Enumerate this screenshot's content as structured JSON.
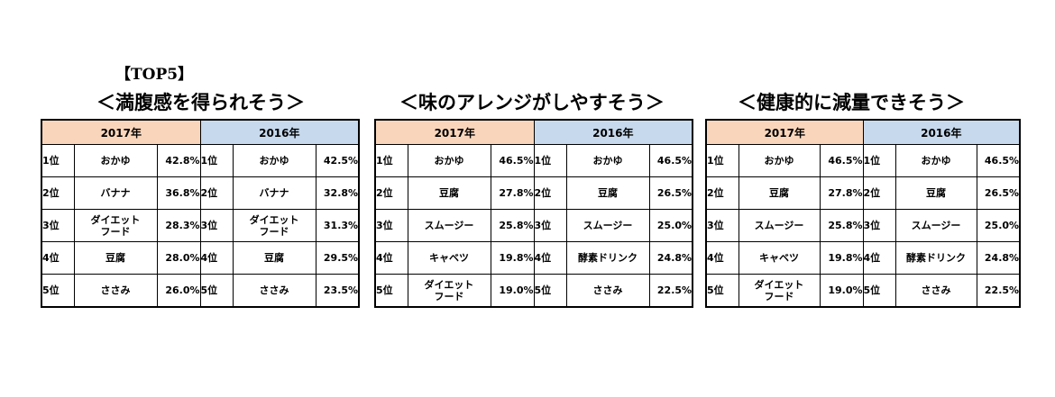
{
  "label": "【TOP5】",
  "panels": [
    {
      "title": "＜満腹感を得られそう＞",
      "year_a": "2017年",
      "year_b": "2016年",
      "rows": [
        {
          "rank_a": "1位",
          "item_a": "おかゆ",
          "pct_a": "42.8%",
          "rank_b": "1位",
          "item_b": "おかゆ",
          "pct_b": "42.5%"
        },
        {
          "rank_a": "2位",
          "item_a": "バナナ",
          "pct_a": "36.8%",
          "rank_b": "2位",
          "item_b": "バナナ",
          "pct_b": "32.8%"
        },
        {
          "rank_a": "3位",
          "item_a": "ダイエット\nフード",
          "pct_a": "28.3%",
          "rank_b": "3位",
          "item_b": "ダイエット\nフード",
          "pct_b": "31.3%"
        },
        {
          "rank_a": "4位",
          "item_a": "豆腐",
          "pct_a": "28.0%",
          "rank_b": "4位",
          "item_b": "豆腐",
          "pct_b": "29.5%"
        },
        {
          "rank_a": "5位",
          "item_a": "ささみ",
          "pct_a": "26.0%",
          "rank_b": "5位",
          "item_b": "ささみ",
          "pct_b": "23.5%"
        }
      ]
    },
    {
      "title": "＜味のアレンジがしやすそう＞",
      "year_a": "2017年",
      "year_b": "2016年",
      "rows": [
        {
          "rank_a": "1位",
          "item_a": "おかゆ",
          "pct_a": "46.5%",
          "rank_b": "1位",
          "item_b": "おかゆ",
          "pct_b": "46.5%"
        },
        {
          "rank_a": "2位",
          "item_a": "豆腐",
          "pct_a": "27.8%",
          "rank_b": "2位",
          "item_b": "豆腐",
          "pct_b": "26.5%"
        },
        {
          "rank_a": "3位",
          "item_a": "スムージー",
          "pct_a": "25.8%",
          "rank_b": "3位",
          "item_b": "スムージー",
          "pct_b": "25.0%"
        },
        {
          "rank_a": "4位",
          "item_a": "キャベツ",
          "pct_a": "19.8%",
          "rank_b": "4位",
          "item_b": "酵素ドリンク",
          "pct_b": "24.8%"
        },
        {
          "rank_a": "5位",
          "item_a": "ダイエット\nフード",
          "pct_a": "19.0%",
          "rank_b": "5位",
          "item_b": "ささみ",
          "pct_b": "22.5%"
        }
      ]
    },
    {
      "title": "＜健康的に減量できそう＞",
      "year_a": "2017年",
      "year_b": "2016年",
      "rows": [
        {
          "rank_a": "1位",
          "item_a": "おかゆ",
          "pct_a": "46.5%",
          "rank_b": "1位",
          "item_b": "おかゆ",
          "pct_b": "46.5%"
        },
        {
          "rank_a": "2位",
          "item_a": "豆腐",
          "pct_a": "27.8%",
          "rank_b": "2位",
          "item_b": "豆腐",
          "pct_b": "26.5%"
        },
        {
          "rank_a": "3位",
          "item_a": "スムージー",
          "pct_a": "25.8%",
          "rank_b": "3位",
          "item_b": "スムージー",
          "pct_b": "25.0%"
        },
        {
          "rank_a": "4位",
          "item_a": "キャベツ",
          "pct_a": "19.8%",
          "rank_b": "4位",
          "item_b": "酵素ドリンク",
          "pct_b": "24.8%"
        },
        {
          "rank_a": "5位",
          "item_a": "ダイエット\nフード",
          "pct_a": "19.0%",
          "rank_b": "5位",
          "item_b": "ささみ",
          "pct_b": "22.5%"
        }
      ]
    }
  ]
}
